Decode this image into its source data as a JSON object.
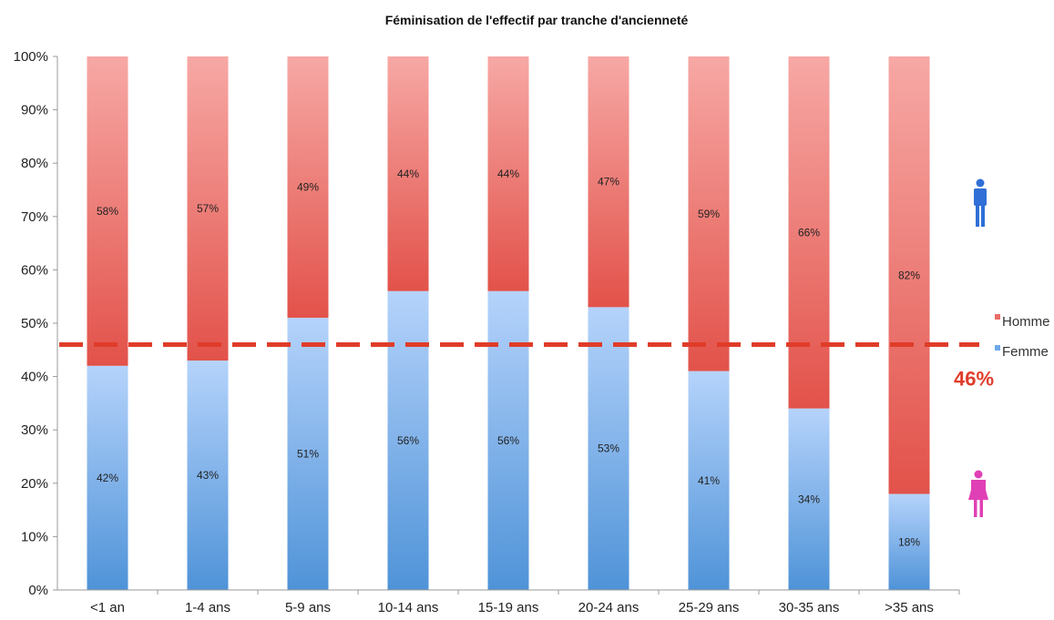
{
  "chart_data": {
    "type": "bar",
    "stacked": true,
    "title": "Féminisation de l'effectif par tranche d'ancienneté",
    "xlabel": "",
    "ylabel": "",
    "ylim": [
      0,
      100
    ],
    "y_ticks": [
      "0%",
      "10%",
      "20%",
      "30%",
      "40%",
      "50%",
      "60%",
      "70%",
      "80%",
      "90%",
      "100%"
    ],
    "categories": [
      "<1 an",
      "1-4 ans",
      "5-9 ans",
      "10-14 ans",
      "15-19 ans",
      "20-24 ans",
      "25-29 ans",
      "30-35 ans",
      ">35 ans"
    ],
    "series": [
      {
        "name": "Femme",
        "values": [
          42,
          43,
          51,
          56,
          56,
          53,
          41,
          34,
          18
        ],
        "labels": [
          "42%",
          "43%",
          "51%",
          "56%",
          "56%",
          "53%",
          "41%",
          "34%",
          "18%"
        ],
        "color": "#6fa8e8"
      },
      {
        "name": "Homme",
        "values": [
          58,
          57,
          49,
          44,
          44,
          47,
          59,
          66,
          82
        ],
        "labels": [
          "58%",
          "57%",
          "49%",
          "44%",
          "44%",
          "47%",
          "59%",
          "66%",
          "82%"
        ],
        "color": "#ea6e67"
      }
    ],
    "reference_line": {
      "value": 46,
      "label": "46%",
      "color": "#e03c2a",
      "style": "dashed"
    },
    "legend": {
      "position": "right",
      "entries": [
        "Homme",
        "Femme"
      ]
    },
    "icons": [
      "male-figure-icon",
      "female-figure-icon"
    ],
    "icon_colors": {
      "male": "#2f6fd6",
      "female": "#e040b5"
    },
    "grid": false
  }
}
